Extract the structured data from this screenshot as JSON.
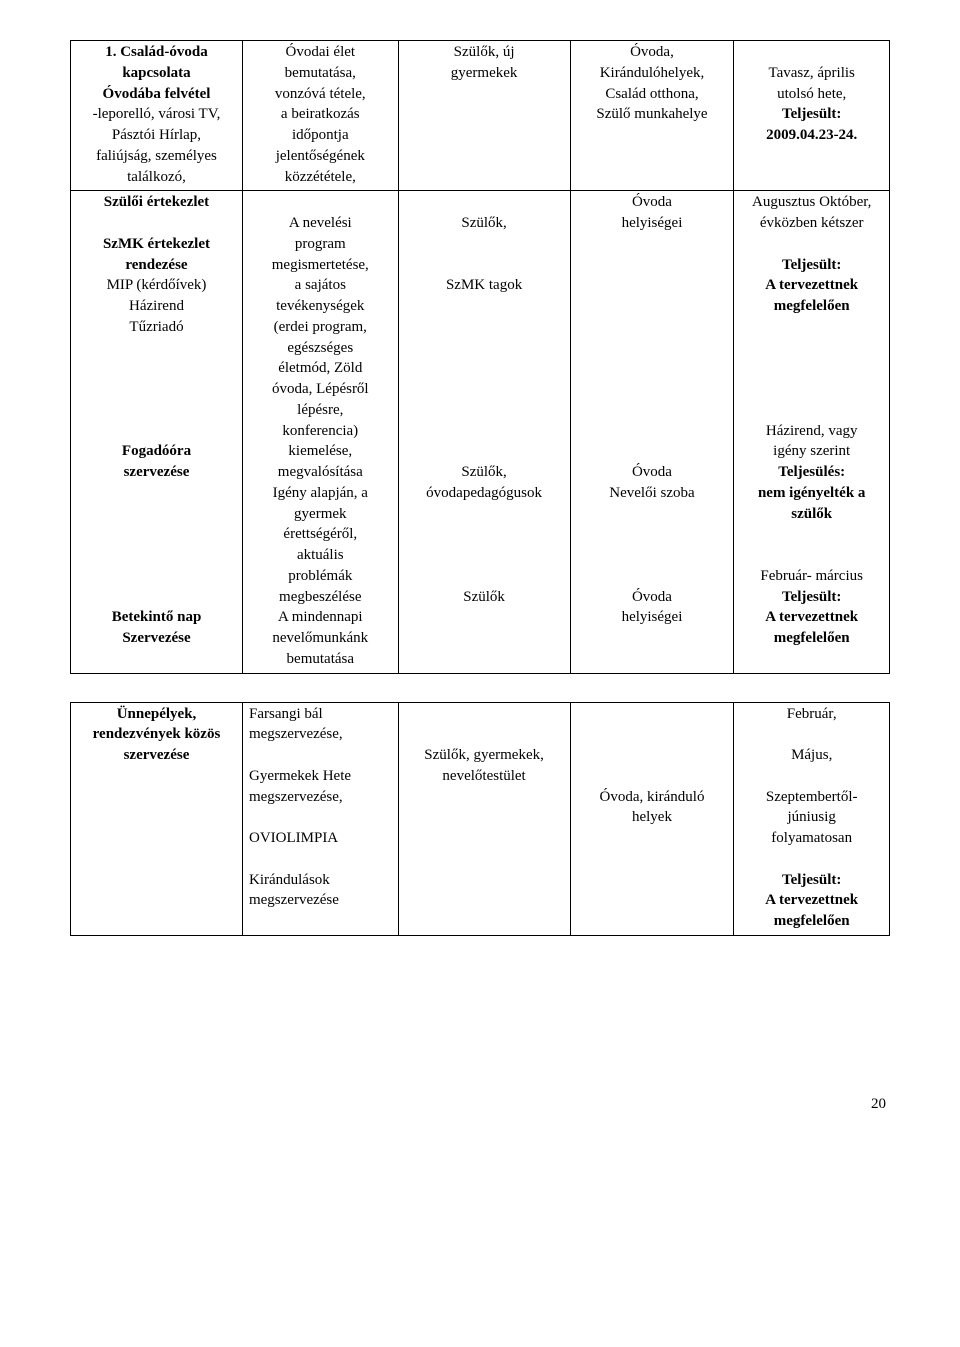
{
  "page_number": "20",
  "table1": {
    "row1": {
      "c1_lines": [
        {
          "t": "1. Család-óvoda",
          "b": true
        },
        {
          "t": "kapcsolata",
          "b": true
        },
        {
          "t": "Óvodába felvétel",
          "b": true
        },
        {
          "t": "-leporelló, városi TV,",
          "b": false
        },
        {
          "t": "Pásztói Hírlap,",
          "b": false
        },
        {
          "t": "faliújság, személyes",
          "b": false
        },
        {
          "t": "találkozó,",
          "b": false
        }
      ],
      "c2_lines": [
        {
          "t": "Óvodai élet",
          "b": false
        },
        {
          "t": "bemutatása,",
          "b": false
        },
        {
          "t": "vonzóvá tétele,",
          "b": false
        },
        {
          "t": "a beiratkozás",
          "b": false
        },
        {
          "t": "időpontja",
          "b": false
        },
        {
          "t": "jelentőségének",
          "b": false
        },
        {
          "t": "közzététele,",
          "b": false
        }
      ],
      "c3_lines": [
        {
          "t": "Szülők, új",
          "b": false
        },
        {
          "t": "gyermekek",
          "b": false
        }
      ],
      "c4_lines": [
        {
          "t": "Óvoda,",
          "b": false
        },
        {
          "t": "Kirándulóhelyek,",
          "b": false
        },
        {
          "t": "Család otthona,",
          "b": false
        },
        {
          "t": "Szülő munkahelye",
          "b": false
        }
      ],
      "c5_lines": [
        {
          "t": "Tavasz, április",
          "b": false
        },
        {
          "t": "utolsó hete,",
          "b": false
        },
        {
          "t": "Teljesült:",
          "b": true
        },
        {
          "t": "2009.04.23-24.",
          "b": true
        }
      ]
    },
    "row2": {
      "c1_groups": [
        [
          {
            "t": "Szülői értekezlet",
            "b": true
          }
        ],
        [
          {
            "t": "SzMK értekezlet",
            "b": true
          },
          {
            "t": "rendezése",
            "b": true
          },
          {
            "t": "MIP (kérdőívek)",
            "b": false
          },
          {
            "t": "Házirend",
            "b": false
          },
          {
            "t": "Tűzriadó",
            "b": false
          }
        ],
        [
          {
            "t": "",
            "b": false
          },
          {
            "t": "",
            "b": false
          },
          {
            "t": "",
            "b": false
          },
          {
            "t": "",
            "b": false
          },
          {
            "t": "Fogadóóra",
            "b": true
          },
          {
            "t": "szervezése",
            "b": true
          }
        ],
        [
          {
            "t": "",
            "b": false
          },
          {
            "t": "",
            "b": false
          },
          {
            "t": "",
            "b": false
          },
          {
            "t": "",
            "b": false
          },
          {
            "t": "",
            "b": false
          },
          {
            "t": "Betekintő nap",
            "b": true
          },
          {
            "t": "Szervezése",
            "b": true
          }
        ]
      ],
      "c2_lines": [
        {
          "t": "",
          "b": false
        },
        {
          "t": "A nevelési",
          "b": false
        },
        {
          "t": "program",
          "b": false
        },
        {
          "t": "megismertetése,",
          "b": false
        },
        {
          "t": "a sajátos",
          "b": false
        },
        {
          "t": "tevékenységek",
          "b": false
        },
        {
          "t": "(erdei program,",
          "b": false
        },
        {
          "t": "egészséges",
          "b": false
        },
        {
          "t": "életmód, Zöld",
          "b": false
        },
        {
          "t": "óvoda, Lépésről",
          "b": false
        },
        {
          "t": "lépésre,",
          "b": false
        },
        {
          "t": "konferencia)",
          "b": false
        },
        {
          "t": "kiemelése,",
          "b": false
        },
        {
          "t": "megvalósítása",
          "b": false
        },
        {
          "t": "Igény alapján, a",
          "b": false
        },
        {
          "t": "gyermek",
          "b": false
        },
        {
          "t": "érettségéről,",
          "b": false
        },
        {
          "t": "aktuális",
          "b": false
        },
        {
          "t": "problémák",
          "b": false
        },
        {
          "t": "megbeszélése",
          "b": false
        },
        {
          "t": "A mindennapi",
          "b": false
        },
        {
          "t": "nevelőmunkánk",
          "b": false
        },
        {
          "t": "bemutatása",
          "b": false
        }
      ],
      "c3_lines": [
        {
          "t": "",
          "b": false
        },
        {
          "t": "Szülők,",
          "b": false
        },
        {
          "t": "",
          "b": false
        },
        {
          "t": "",
          "b": false
        },
        {
          "t": "SzMK tagok",
          "b": false
        },
        {
          "t": "",
          "b": false
        },
        {
          "t": "",
          "b": false
        },
        {
          "t": "",
          "b": false
        },
        {
          "t": "",
          "b": false
        },
        {
          "t": "",
          "b": false
        },
        {
          "t": "",
          "b": false
        },
        {
          "t": "",
          "b": false
        },
        {
          "t": "",
          "b": false
        },
        {
          "t": "Szülők,",
          "b": false
        },
        {
          "t": "óvodapedagógusok",
          "b": false
        },
        {
          "t": "",
          "b": false
        },
        {
          "t": "",
          "b": false
        },
        {
          "t": "",
          "b": false
        },
        {
          "t": "",
          "b": false
        },
        {
          "t": "Szülők",
          "b": false
        }
      ],
      "c4_lines": [
        {
          "t": "Óvoda",
          "b": false
        },
        {
          "t": "helyiségei",
          "b": false
        },
        {
          "t": "",
          "b": false
        },
        {
          "t": "",
          "b": false
        },
        {
          "t": "",
          "b": false
        },
        {
          "t": "",
          "b": false
        },
        {
          "t": "",
          "b": false
        },
        {
          "t": "",
          "b": false
        },
        {
          "t": "",
          "b": false
        },
        {
          "t": "",
          "b": false
        },
        {
          "t": "",
          "b": false
        },
        {
          "t": "",
          "b": false
        },
        {
          "t": "",
          "b": false
        },
        {
          "t": "Óvoda",
          "b": false
        },
        {
          "t": "Nevelői szoba",
          "b": false
        },
        {
          "t": "",
          "b": false
        },
        {
          "t": "",
          "b": false
        },
        {
          "t": "",
          "b": false
        },
        {
          "t": "",
          "b": false
        },
        {
          "t": "Óvoda",
          "b": false
        },
        {
          "t": "helyiségei",
          "b": false
        }
      ],
      "c5_lines": [
        {
          "t": "Augusztus Október,",
          "b": false
        },
        {
          "t": "évközben kétszer",
          "b": false
        },
        {
          "t": "",
          "b": false
        },
        {
          "t": "Teljesült:",
          "b": true
        },
        {
          "t": "A tervezettnek",
          "b": true
        },
        {
          "t": "megfelelően",
          "b": true
        },
        {
          "t": "",
          "b": false
        },
        {
          "t": "",
          "b": false
        },
        {
          "t": "",
          "b": false
        },
        {
          "t": "",
          "b": false
        },
        {
          "t": "",
          "b": false
        },
        {
          "t": "Házirend, vagy",
          "b": false
        },
        {
          "t": "igény szerint",
          "b": false
        },
        {
          "t": "Teljesülés:",
          "b": true
        },
        {
          "t": "nem igényelték a",
          "b": true
        },
        {
          "t": "szülők",
          "b": true
        },
        {
          "t": "",
          "b": false
        },
        {
          "t": "",
          "b": false
        },
        {
          "t": "Február- március",
          "b": false
        },
        {
          "t": "Teljesült:",
          "b": true
        },
        {
          "t": "A tervezettnek",
          "b": true
        },
        {
          "t": "megfelelően",
          "b": true
        }
      ]
    }
  },
  "table2": {
    "row": {
      "c1_lines": [
        {
          "t": "Ünnepélyek,",
          "b": true
        },
        {
          "t": "rendezvények közös",
          "b": true
        },
        {
          "t": "szervezése",
          "b": true
        }
      ],
      "c2_groups": [
        [
          {
            "t": "Farsangi bál",
            "b": false
          },
          {
            "t": "megszervezése,",
            "b": false
          }
        ],
        [
          {
            "t": "Gyermekek Hete",
            "b": false
          },
          {
            "t": "megszervezése,",
            "b": false
          }
        ],
        [
          {
            "t": "OVIOLIMPIA",
            "b": false
          }
        ],
        [
          {
            "t": "Kirándulások",
            "b": false
          },
          {
            "t": "megszervezése",
            "b": false
          }
        ]
      ],
      "c3_lines": [
        {
          "t": "",
          "b": false
        },
        {
          "t": "",
          "b": false
        },
        {
          "t": "Szülők, gyermekek,",
          "b": false
        },
        {
          "t": "nevelőtestület",
          "b": false
        }
      ],
      "c4_lines": [
        {
          "t": "",
          "b": false
        },
        {
          "t": "",
          "b": false
        },
        {
          "t": "",
          "b": false
        },
        {
          "t": "",
          "b": false
        },
        {
          "t": "Óvoda, kiránduló",
          "b": false
        },
        {
          "t": "helyek",
          "b": false
        }
      ],
      "c5_groups": [
        [
          {
            "t": "Február,",
            "b": false
          }
        ],
        [
          {
            "t": "Május,",
            "b": false
          }
        ],
        [
          {
            "t": "Szeptembertől-",
            "b": false
          },
          {
            "t": "júniusig",
            "b": false
          },
          {
            "t": "folyamatosan",
            "b": false
          }
        ],
        [
          {
            "t": "Teljesült:",
            "b": true
          },
          {
            "t": "A tervezettnek",
            "b": true
          },
          {
            "t": "megfelelően",
            "b": true
          }
        ]
      ]
    }
  }
}
